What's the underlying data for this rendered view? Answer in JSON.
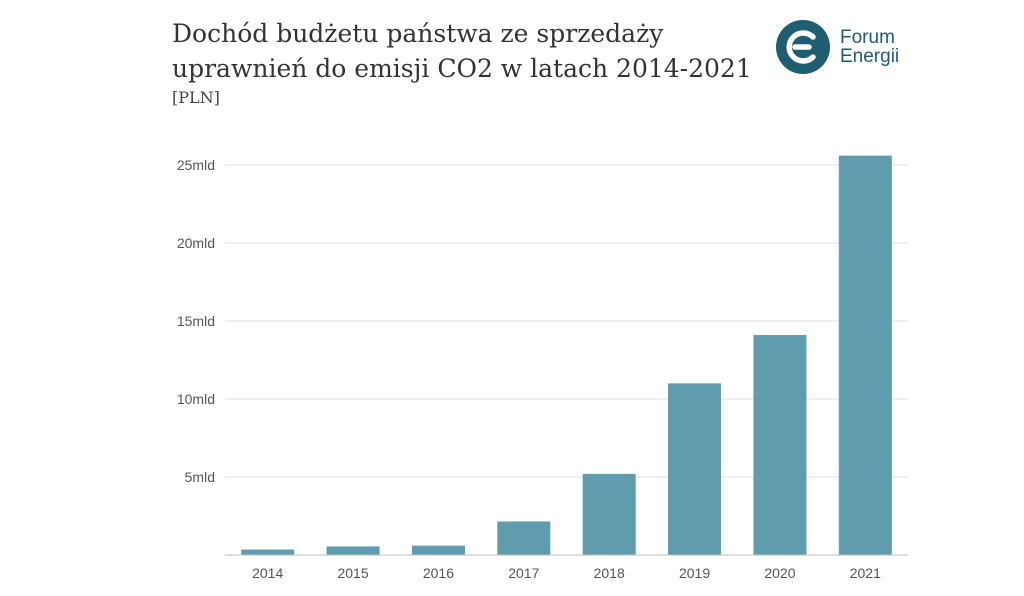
{
  "header": {
    "title_line1": "Dochód budżetu państwa ze sprzedaży",
    "title_line2": "uprawnień do emisji CO2 w latach 2014-2021",
    "unit": "[PLN]"
  },
  "logo": {
    "line1": "Forum",
    "line2": "Energii",
    "icon": "forum-energii-logo-icon",
    "color": "#1f5d73"
  },
  "colors": {
    "bar": "#5f9cae",
    "grid": "#e2e2e2",
    "axis": "#bdbdbd",
    "text": "#555555"
  },
  "chart_data": {
    "type": "bar",
    "title": "Dochód budżetu państwa ze sprzedaży uprawnień do emisji CO2 w latach 2014-2021",
    "subtitle": "[PLN]",
    "xlabel": "",
    "ylabel": "",
    "categories": [
      "2014",
      "2015",
      "2016",
      "2017",
      "2018",
      "2019",
      "2020",
      "2021"
    ],
    "values": [
      0.35,
      0.55,
      0.6,
      2.15,
      5.2,
      11.0,
      14.1,
      25.6
    ],
    "value_unit": "mld PLN",
    "ylim": [
      0,
      25
    ],
    "yticks": [
      5,
      10,
      15,
      20,
      25
    ],
    "ytick_labels": [
      "5mld",
      "10mld",
      "15mld",
      "20mld",
      "25mld"
    ],
    "grid": true,
    "legend": "none"
  }
}
